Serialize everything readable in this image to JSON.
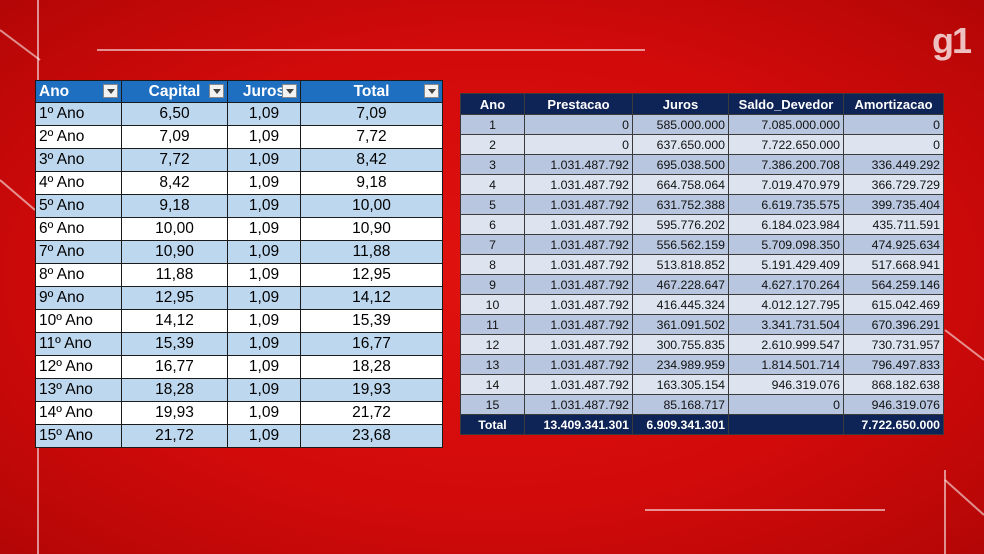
{
  "logo": "g1",
  "table1": {
    "header": [
      "Ano",
      "Capital",
      "Juros",
      "Total"
    ],
    "rows": [
      [
        "1º Ano",
        "6,50",
        "1,09",
        "7,09"
      ],
      [
        "2º Ano",
        "7,09",
        "1,09",
        "7,72"
      ],
      [
        "3º Ano",
        "7,72",
        "1,09",
        "8,42"
      ],
      [
        "4º Ano",
        "8,42",
        "1,09",
        "9,18"
      ],
      [
        "5º Ano",
        "9,18",
        "1,09",
        "10,00"
      ],
      [
        "6º Ano",
        "10,00",
        "1,09",
        "10,90"
      ],
      [
        "7º Ano",
        "10,90",
        "1,09",
        "11,88"
      ],
      [
        "8º Ano",
        "11,88",
        "1,09",
        "12,95"
      ],
      [
        "9º Ano",
        "12,95",
        "1,09",
        "14,12"
      ],
      [
        "10º Ano",
        "14,12",
        "1,09",
        "15,39"
      ],
      [
        "11º Ano",
        "15,39",
        "1,09",
        "16,77"
      ],
      [
        "12º Ano",
        "16,77",
        "1,09",
        "18,28"
      ],
      [
        "13º Ano",
        "18,28",
        "1,09",
        "19,93"
      ],
      [
        "14º Ano",
        "19,93",
        "1,09",
        "21,72"
      ],
      [
        "15º Ano",
        "21,72",
        "1,09",
        "23,68"
      ]
    ]
  },
  "table2": {
    "header": [
      "Ano",
      "Prestacao",
      "Juros",
      "Saldo_Devedor",
      "Amortizacao"
    ],
    "rows": [
      [
        "1",
        "0",
        "585.000.000",
        "7.085.000.000",
        "0"
      ],
      [
        "2",
        "0",
        "637.650.000",
        "7.722.650.000",
        "0"
      ],
      [
        "3",
        "1.031.487.792",
        "695.038.500",
        "7.386.200.708",
        "336.449.292"
      ],
      [
        "4",
        "1.031.487.792",
        "664.758.064",
        "7.019.470.979",
        "366.729.729"
      ],
      [
        "5",
        "1.031.487.792",
        "631.752.388",
        "6.619.735.575",
        "399.735.404"
      ],
      [
        "6",
        "1.031.487.792",
        "595.776.202",
        "6.184.023.984",
        "435.711.591"
      ],
      [
        "7",
        "1.031.487.792",
        "556.562.159",
        "5.709.098.350",
        "474.925.634"
      ],
      [
        "8",
        "1.031.487.792",
        "513.818.852",
        "5.191.429.409",
        "517.668.941"
      ],
      [
        "9",
        "1.031.487.792",
        "467.228.647",
        "4.627.170.264",
        "564.259.146"
      ],
      [
        "10",
        "1.031.487.792",
        "416.445.324",
        "4.012.127.795",
        "615.042.469"
      ],
      [
        "11",
        "1.031.487.792",
        "361.091.502",
        "3.341.731.504",
        "670.396.291"
      ],
      [
        "12",
        "1.031.487.792",
        "300.755.835",
        "2.610.999.547",
        "730.731.957"
      ],
      [
        "13",
        "1.031.487.792",
        "234.989.959",
        "1.814.501.714",
        "796.497.833"
      ],
      [
        "14",
        "1.031.487.792",
        "163.305.154",
        "946.319.076",
        "868.182.638"
      ],
      [
        "15",
        "1.031.487.792",
        "85.168.717",
        "0",
        "946.319.076"
      ]
    ],
    "total": [
      "Total",
      "13.409.341.301",
      "6.909.341.301",
      null,
      "7.722.650.000"
    ]
  }
}
